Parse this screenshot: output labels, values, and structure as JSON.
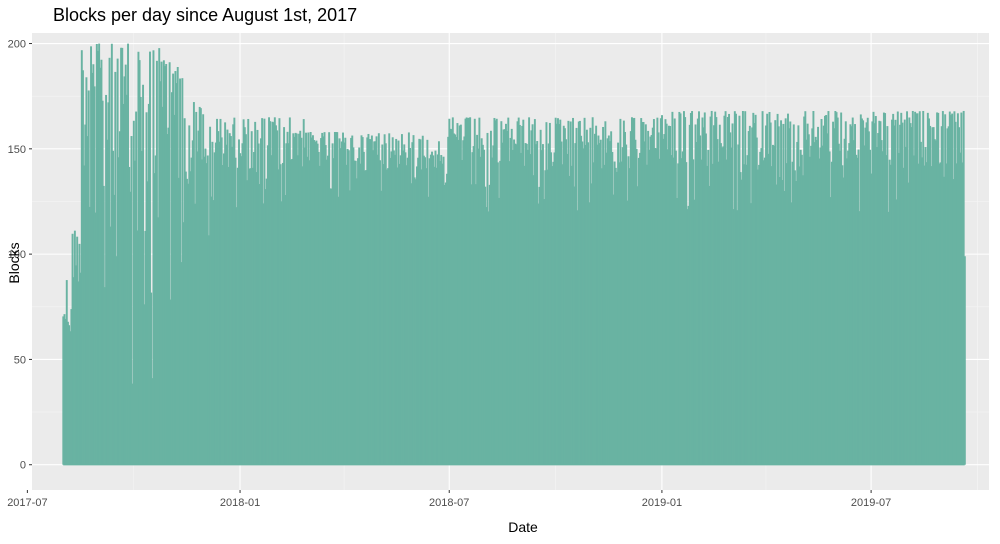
{
  "chart_data": {
    "type": "bar",
    "title": "Blocks per day since August 1st, 2017",
    "xlabel": "Date",
    "ylabel": "Blocks",
    "x_range": [
      "2017-07-05",
      "2019-10-11"
    ],
    "x_start": "2017-08-01",
    "x_end": "2019-09-20",
    "ylim": [
      -12,
      205
    ],
    "y_ticks": [
      0,
      50,
      100,
      150,
      200
    ],
    "x_ticks": [
      {
        "date": "2017-07-01",
        "label": "2017-07"
      },
      {
        "date": "2018-01-01",
        "label": "2018-01"
      },
      {
        "date": "2018-07-01",
        "label": "2018-07"
      },
      {
        "date": "2019-01-01",
        "label": "2019-01"
      },
      {
        "date": "2019-07-01",
        "label": "2019-07"
      }
    ],
    "x_minor_ticks": [
      "2017-10-01",
      "2018-04-01",
      "2018-10-01",
      "2019-04-01",
      "2019-10-01"
    ],
    "grid": true,
    "legend": "none",
    "fill_color": "#69b3a2",
    "panel_color": "#ebebeb",
    "grid_color": "#ffffff",
    "note": "Daily block counts drawn as a spike series; summarized by segment (date ranges with approximate low/high daily values).",
    "segments": [
      {
        "start": "2017-08-01",
        "end": "2017-08-08",
        "low": 20,
        "high": 90
      },
      {
        "start": "2017-08-09",
        "end": "2017-08-16",
        "low": 60,
        "high": 112
      },
      {
        "start": "2017-08-17",
        "end": "2017-08-26",
        "low": 90,
        "high": 200
      },
      {
        "start": "2017-08-27",
        "end": "2017-09-10",
        "low": 40,
        "high": 200
      },
      {
        "start": "2017-09-11",
        "end": "2017-10-05",
        "low": 15,
        "high": 200
      },
      {
        "start": "2017-10-06",
        "end": "2017-10-25",
        "low": 30,
        "high": 200
      },
      {
        "start": "2017-10-26",
        "end": "2017-11-12",
        "low": 70,
        "high": 200
      },
      {
        "start": "2017-11-13",
        "end": "2017-12-05",
        "low": 100,
        "high": 173
      },
      {
        "start": "2017-12-06",
        "end": "2018-02-28",
        "low": 120,
        "high": 165
      },
      {
        "start": "2018-03-01",
        "end": "2018-06-30",
        "low": 125,
        "high": 158
      },
      {
        "start": "2018-07-01",
        "end": "2018-12-31",
        "low": 120,
        "high": 165
      },
      {
        "start": "2019-01-01",
        "end": "2019-09-19",
        "low": 120,
        "high": 168
      },
      {
        "start": "2019-09-20",
        "end": "2019-09-20",
        "low": 99,
        "high": 99
      }
    ]
  }
}
